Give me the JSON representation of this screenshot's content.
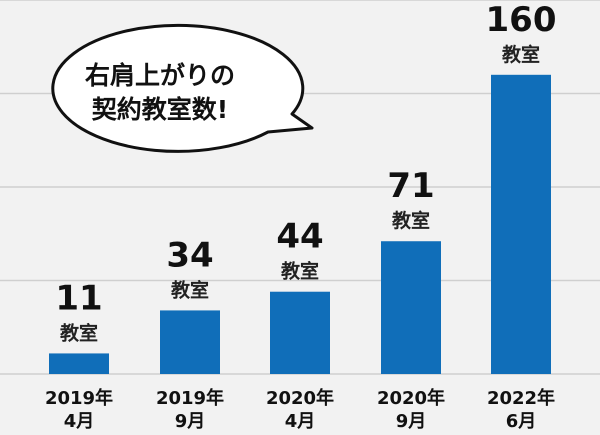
{
  "chart_data": {
    "type": "bar",
    "title": "右肩上がりの契約教室数!",
    "title_lines": [
      "右肩上がりの",
      "契約教室数!"
    ],
    "categories": [
      [
        "2019年",
        "4月"
      ],
      [
        "2019年",
        "9月"
      ],
      [
        "2020年",
        "4月"
      ],
      [
        "2020年",
        "9月"
      ],
      [
        "2022年",
        "6月"
      ]
    ],
    "values": [
      11,
      34,
      44,
      71,
      160
    ],
    "value_unit": "教室",
    "xlabel": "",
    "ylabel": "",
    "ylim": [
      0,
      200
    ],
    "grid_step": 50,
    "grid": true,
    "colors": {
      "bar": "#106eb9",
      "background": "#f2f2f2",
      "grid": "#cfcfcf"
    }
  }
}
